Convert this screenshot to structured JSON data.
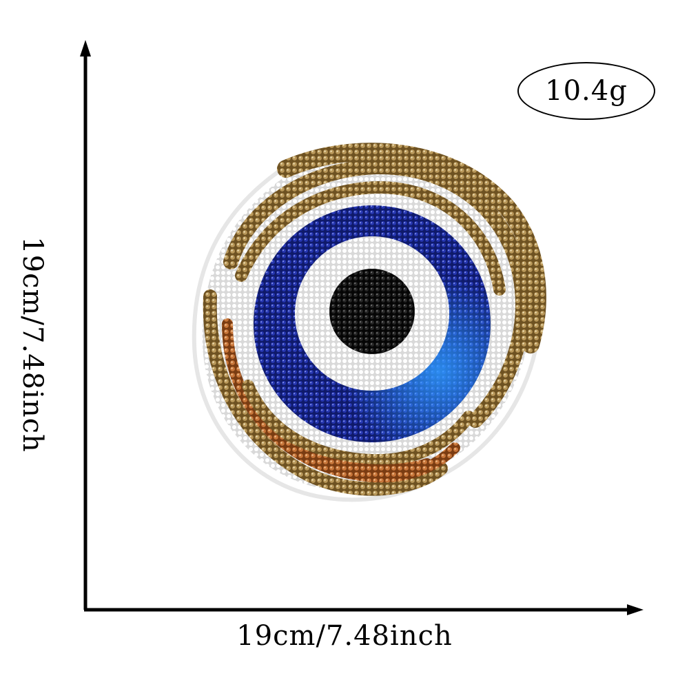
{
  "weight": {
    "label": "10.4g"
  },
  "dimensions": {
    "width_label": "19cm/7.48inch",
    "height_label": "19cm/7.48inch"
  },
  "product": {
    "icon": "sequin-evil-eye-patch",
    "colors": {
      "gold": "#8a6a2e",
      "copper": "#b0642a",
      "white": "#f4f4f4",
      "blue": "#1d2a9c",
      "bright_blue": "#1e78e8",
      "pupil": "#141414"
    }
  }
}
